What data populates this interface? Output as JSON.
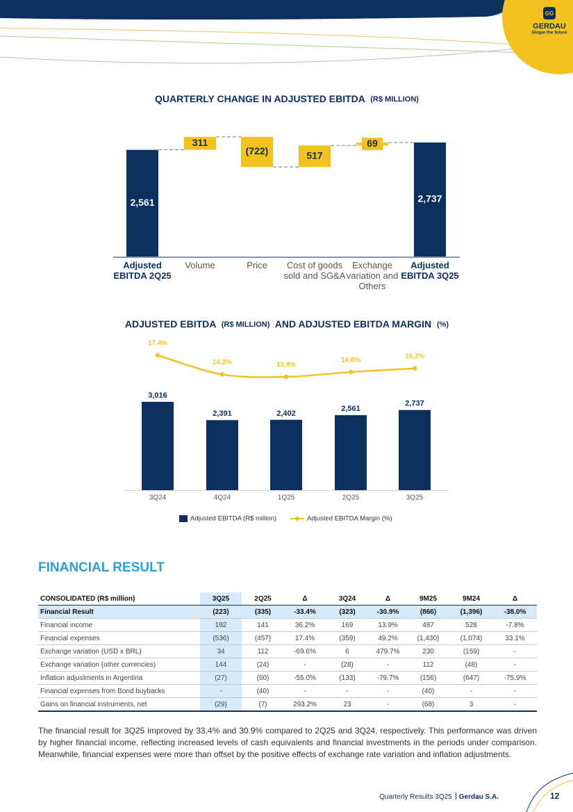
{
  "header": {
    "brand": "GERDAU",
    "tagline": "Shape the future"
  },
  "chart_data": [
    {
      "type": "waterfall",
      "title": [
        "QUARTERLY CHANGE IN ADJUSTED EBITDA",
        "(R$ MILLION)"
      ],
      "categories": [
        "Adjusted EBITDA 2Q25",
        "Volume",
        "Price",
        "Cost of goods sold and SG&A",
        "Exchange variation and Others",
        "Adjusted EBITDA 3Q25"
      ],
      "values": [
        2561,
        311,
        -722,
        517,
        69,
        2737
      ],
      "value_labels": [
        "2,561",
        "311",
        "(722)",
        "517",
        "69",
        "2,737"
      ],
      "colors": {
        "total": "#0b2f5e",
        "change": "#f4c21f"
      }
    },
    {
      "type": "combo",
      "title": [
        "ADJUSTED EBITDA",
        "(R$ MILLION)",
        "AND ADJUSTED EBITDA MARGIN",
        "(%)"
      ],
      "categories": [
        "3Q24",
        "4Q24",
        "1Q25",
        "2Q25",
        "3Q25"
      ],
      "series": [
        {
          "name": "Adjusted EBITDA (R$ million)",
          "type": "bar",
          "color": "#0b2f5e",
          "values": [
            3016,
            2391,
            2402,
            2561,
            2737
          ],
          "value_labels": [
            "3,016",
            "2,391",
            "2,402",
            "2,561",
            "2,737"
          ]
        },
        {
          "name": "Adjusted EBITDA Margin (%)",
          "type": "line",
          "axis": "y2",
          "color": "#f4c21f",
          "values": [
            17.4,
            14.2,
            13.8,
            14.6,
            15.2
          ],
          "value_labels": [
            "17,4%",
            "14,2%",
            "13,8%",
            "14,6%",
            "15,2%"
          ]
        }
      ],
      "legend": "bottom"
    }
  ],
  "section": {
    "title": "FINANCIAL RESULT"
  },
  "table": {
    "header": [
      "CONSOLIDATED (R$ million)",
      "3Q25",
      "2Q25",
      "Δ",
      "3Q24",
      "Δ",
      "9M25",
      "9M24",
      "Δ"
    ],
    "rows": [
      [
        "Financial Result",
        "(223)",
        "(335)",
        "-33.4%",
        "(323)",
        "-30.9%",
        "(866)",
        "(1,396)",
        "-38.0%"
      ],
      [
        "Financial income",
        "192",
        "141",
        "36.2%",
        "169",
        "13.9%",
        "487",
        "528",
        "-7.8%"
      ],
      [
        "Financial expenses",
        "(536)",
        "(457)",
        "17.4%",
        "(359)",
        "49.2%",
        "(1,430)",
        "(1,074)",
        "33.1%"
      ],
      [
        "Exchange variation (USD x BRL)",
        "34",
        "112",
        "-69.6%",
        "6",
        "479.7%",
        "230",
        "(159)",
        "-"
      ],
      [
        "Exchange variation (other currencies)",
        "144",
        "(24)",
        "-",
        "(28)",
        "-",
        "112",
        "(48)",
        "-"
      ],
      [
        "Inflation adjustments in Argentina",
        "(27)",
        "(60)",
        "-55.0%",
        "(133)",
        "-79.7%",
        "(156)",
        "(647)",
        "-75.9%"
      ],
      [
        "Financial expenses from Bond buybacks",
        "-",
        "(40)",
        "-",
        "-",
        "-",
        "(40)",
        "-",
        "-"
      ],
      [
        "Gains on financial instruments, net",
        "(29)",
        "(7)",
        "293.2%",
        "23",
        "-",
        "(68)",
        "3",
        "-"
      ]
    ]
  },
  "paragraph": "The financial result for 3Q25 improved by 33.4% and 30.9% compared to 2Q25 and 3Q24, respectively. This performance was driven by higher financial income, reflecting increased levels of cash equivalents and financial investments in the periods under comparison. Meanwhile, financial expenses were more than offset by the positive effects of exchange rate variation and inflation adjustments.",
  "footer": {
    "report": "Quarterly Results 3Q25",
    "company": "Gerdau S.A.",
    "page": "12"
  }
}
